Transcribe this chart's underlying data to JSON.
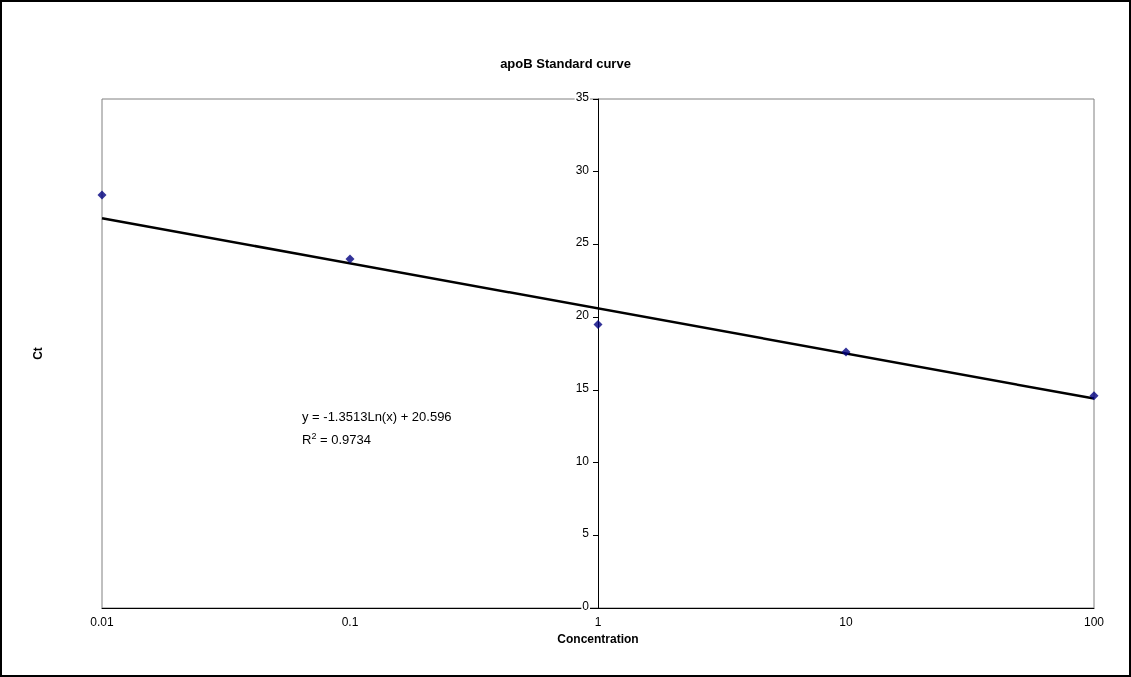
{
  "chart_data": {
    "type": "scatter",
    "title": "apoB Standard curve",
    "xlabel": "Concentration",
    "ylabel": "Ct",
    "log": "x",
    "xlim": [
      0.01,
      100
    ],
    "xticks": [
      {
        "value": 0.01,
        "label": "0.01"
      },
      {
        "value": 0.1,
        "label": "0.1"
      },
      1,
      10,
      100
    ],
    "ylim": [
      0,
      35
    ],
    "yticks": [
      0,
      5,
      10,
      15,
      20,
      25,
      30,
      35
    ],
    "grid": false,
    "marker": "diamond",
    "annotations": [
      "y = -1.3513Ln(x) + 20.596",
      "R$^{2}$ = 0.9734"
    ],
    "series": [
      {
        "color": "#000080",
        "x": [
          0.01,
          0.1,
          1,
          10,
          100
        ],
        "values": [
          28.4,
          24.0,
          19.5,
          17.6,
          14.6
        ]
      },
      {
        "type": "line",
        "color": "#000000",
        "marker": "none",
        "x": [
          0.01,
          100
        ],
        "values": [
          26.8,
          14.4
        ]
      }
    ]
  }
}
